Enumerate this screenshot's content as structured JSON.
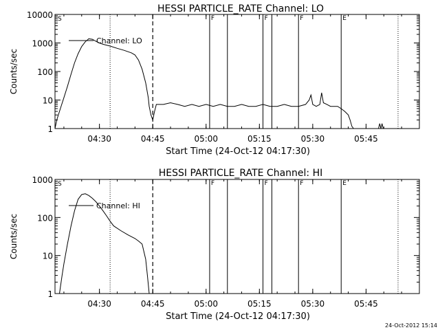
{
  "footer": {
    "timestamp": "24-Oct-2012 15:14"
  },
  "chart_data": [
    {
      "type": "line",
      "title": "HESSI PARTICLE_RATE Channel: LO",
      "xlabel": "Start Time (24-Oct-12 04:17:30)",
      "ylabel": "Counts/sec",
      "log_y": true,
      "xlim": [
        "04:17:30",
        "06:00:00"
      ],
      "ylim": [
        1,
        10000
      ],
      "x_ticks": [
        "04:30",
        "04:45",
        "05:00",
        "05:15",
        "05:30",
        "05:45"
      ],
      "y_ticks": [
        "1",
        "10",
        "100",
        "1000",
        "10000"
      ],
      "legend": {
        "label": "Channel: LO",
        "placement": "top-left"
      },
      "series": [
        {
          "name": "Channel: LO",
          "points": [
            [
              "04:17:30",
              1
            ],
            [
              "04:18:00",
              2
            ],
            [
              "04:19:00",
              5
            ],
            [
              "04:20:00",
              12
            ],
            [
              "04:21:00",
              30
            ],
            [
              "04:22:00",
              80
            ],
            [
              "04:23:00",
              200
            ],
            [
              "04:24:00",
              420
            ],
            [
              "04:25:00",
              750
            ],
            [
              "04:26:00",
              1100
            ],
            [
              "04:27:00",
              1400
            ],
            [
              "04:28:00",
              1350
            ],
            [
              "04:29:00",
              1150
            ],
            [
              "04:30:00",
              1000
            ],
            [
              "04:31:00",
              900
            ],
            [
              "04:33:00",
              780
            ],
            [
              "04:35:00",
              650
            ],
            [
              "04:37:00",
              550
            ],
            [
              "04:39:00",
              450
            ],
            [
              "04:40:00",
              380
            ],
            [
              "04:41:00",
              250
            ],
            [
              "04:42:00",
              120
            ],
            [
              "04:43:00",
              40
            ],
            [
              "04:43:45",
              12
            ],
            [
              "04:44:00",
              6
            ],
            [
              "04:44:30",
              3
            ],
            [
              "04:45:00",
              2
            ],
            [
              "04:45:30",
              4
            ],
            [
              "04:46:00",
              7
            ],
            [
              "04:48:00",
              7
            ],
            [
              "04:50:00",
              8
            ],
            [
              "04:52:00",
              7
            ],
            [
              "04:54:00",
              6
            ],
            [
              "04:56:00",
              7
            ],
            [
              "04:58:00",
              6
            ],
            [
              "05:00:00",
              7
            ],
            [
              "05:02:00",
              6
            ],
            [
              "05:04:00",
              7
            ],
            [
              "05:06:00",
              6
            ],
            [
              "05:08:00",
              6
            ],
            [
              "05:10:00",
              7
            ],
            [
              "05:12:00",
              6
            ],
            [
              "05:14:00",
              6
            ],
            [
              "05:16:00",
              7
            ],
            [
              "05:18:00",
              6
            ],
            [
              "05:20:00",
              6
            ],
            [
              "05:22:00",
              7
            ],
            [
              "05:24:00",
              6
            ],
            [
              "05:26:00",
              6
            ],
            [
              "05:28:00",
              7
            ],
            [
              "05:29:00",
              10
            ],
            [
              "05:29:30",
              15
            ],
            [
              "05:30:00",
              7
            ],
            [
              "05:31:00",
              6
            ],
            [
              "05:32:00",
              7
            ],
            [
              "05:32:30",
              18
            ],
            [
              "05:33:00",
              8
            ],
            [
              "05:34:00",
              7
            ],
            [
              "05:35:00",
              6
            ],
            [
              "05:37:00",
              6
            ],
            [
              "05:38:00",
              5
            ],
            [
              "05:39:00",
              4
            ],
            [
              "05:40:00",
              3
            ],
            [
              "05:40:30",
              2
            ],
            [
              "05:41:00",
              1.2
            ],
            [
              "05:41:30",
              1
            ]
          ],
          "late_points": [
            [
              "05:48:30",
              1
            ],
            [
              "05:48:50",
              1.5
            ],
            [
              "05:49:10",
              1
            ],
            [
              "05:49:30",
              1.5
            ],
            [
              "05:49:50",
              1
            ]
          ]
        }
      ],
      "markers": [
        {
          "style": "dotted",
          "time": "04:33:00"
        },
        {
          "style": "dashed",
          "time": "04:45:00"
        },
        {
          "style": "solid",
          "time": "05:01:00",
          "flag": "F"
        },
        {
          "style": "solid",
          "time": "05:06:00"
        },
        {
          "style": "solid",
          "time": "05:16:00",
          "flag": "F"
        },
        {
          "style": "solid",
          "time": "05:18:30"
        },
        {
          "style": "solid",
          "time": "05:26:00",
          "flag": "F"
        },
        {
          "style": "solid",
          "time": "05:38:00",
          "flag": "E"
        },
        {
          "style": "dotted",
          "time": "05:54:00"
        }
      ],
      "top_left_flag": "S"
    },
    {
      "type": "line",
      "title": "HESSI PARTICLE_RATE Channel: HI",
      "xlabel": "Start Time (24-Oct-12 04:17:30)",
      "ylabel": "Counts/sec",
      "log_y": true,
      "xlim": [
        "04:17:30",
        "06:00:00"
      ],
      "ylim": [
        1,
        1000
      ],
      "x_ticks": [
        "04:30",
        "04:45",
        "05:00",
        "05:15",
        "05:30",
        "05:45"
      ],
      "y_ticks": [
        "1",
        "10",
        "100",
        "1000"
      ],
      "legend": {
        "label": "Channel: HI",
        "placement": "top-left"
      },
      "series": [
        {
          "name": "Channel: HI",
          "points": [
            [
              "04:18:45",
              1
            ],
            [
              "04:19:30",
              3
            ],
            [
              "04:20:00",
              6
            ],
            [
              "04:21:00",
              20
            ],
            [
              "04:22:00",
              60
            ],
            [
              "04:23:00",
              150
            ],
            [
              "04:24:00",
              300
            ],
            [
              "04:25:00",
              400
            ],
            [
              "04:26:00",
              420
            ],
            [
              "04:27:00",
              380
            ],
            [
              "04:28:00",
              320
            ],
            [
              "04:29:00",
              260
            ],
            [
              "04:30:00",
              200
            ],
            [
              "04:31:00",
              150
            ],
            [
              "04:32:00",
              110
            ],
            [
              "04:33:00",
              80
            ],
            [
              "04:34:00",
              60
            ],
            [
              "04:36:00",
              45
            ],
            [
              "04:38:00",
              35
            ],
            [
              "04:40:00",
              28
            ],
            [
              "04:41:00",
              24
            ],
            [
              "04:42:00",
              20
            ],
            [
              "04:43:00",
              8
            ],
            [
              "04:43:30",
              3
            ],
            [
              "04:44:00",
              1
            ]
          ]
        }
      ],
      "markers": [
        {
          "style": "dotted",
          "time": "04:33:00"
        },
        {
          "style": "dashed",
          "time": "04:45:00"
        },
        {
          "style": "solid",
          "time": "05:01:00",
          "flag": "F"
        },
        {
          "style": "solid",
          "time": "05:06:00"
        },
        {
          "style": "solid",
          "time": "05:16:00",
          "flag": "F"
        },
        {
          "style": "solid",
          "time": "05:18:30"
        },
        {
          "style": "solid",
          "time": "05:26:00",
          "flag": "F"
        },
        {
          "style": "solid",
          "time": "05:38:00",
          "flag": "E"
        },
        {
          "style": "dotted",
          "time": "05:54:00"
        }
      ],
      "top_left_flag": "S"
    }
  ]
}
